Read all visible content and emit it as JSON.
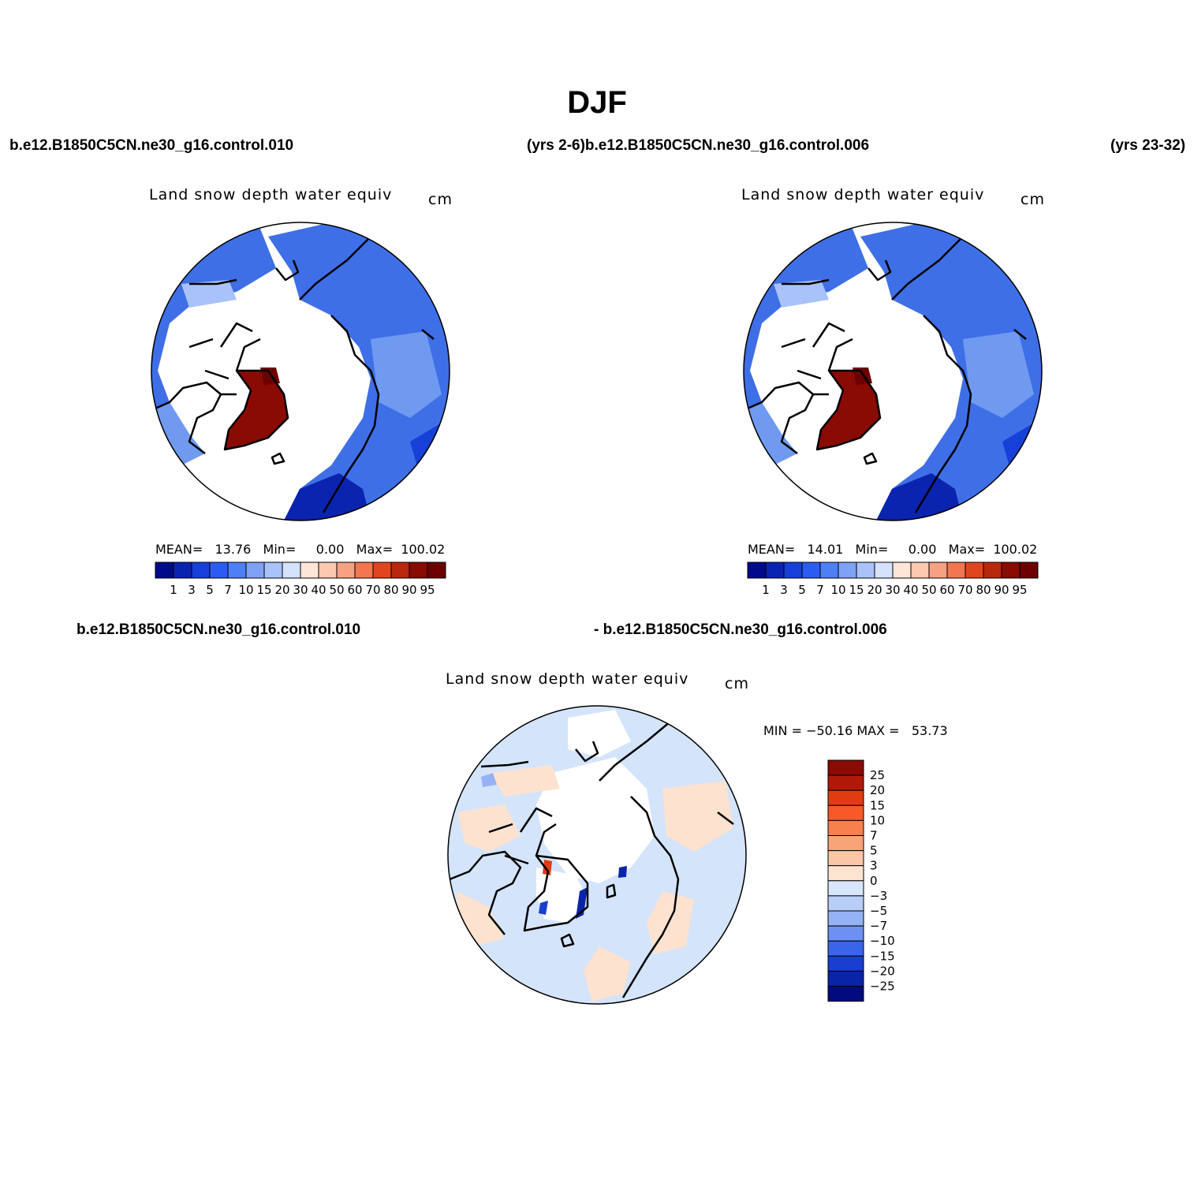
{
  "figure_title": "DJF",
  "header": {
    "case1": "b.e12.B1850C5CN.ne30_g16.control.010",
    "years1_case2": "(yrs 2-6)b.e12.B1850C5CN.ne30_g16.control.006",
    "years2": "(yrs 23-32)",
    "diff_left": "b.e12.B1850C5CN.ne30_g16.control.010",
    "diff_right": "- b.e12.B1850C5CN.ne30_g16.control.006"
  },
  "panels": [
    {
      "id": "case1",
      "title": "Land snow depth water equiv",
      "units": "cm",
      "stats": "MEAN=   13.76   Min=     0.00   Max=  100.02"
    },
    {
      "id": "case2",
      "title": "Land snow depth water equiv",
      "units": "cm",
      "stats": "MEAN=   14.01   Min=     0.00   Max=  100.02"
    },
    {
      "id": "difference",
      "title": "Land snow depth water equiv",
      "units": "cm",
      "stats": "MIN = −50.16 MAX =   53.73"
    }
  ],
  "colorbar_abs": {
    "labels": [
      "1",
      "3",
      "5",
      "7",
      "10",
      "15",
      "20",
      "30",
      "40",
      "50",
      "60",
      "70",
      "80",
      "90",
      "95"
    ],
    "colors": [
      "#000a8a",
      "#0a24b0",
      "#1640d8",
      "#2b5cf0",
      "#4f7ff5",
      "#7fa2f7",
      "#a9c2f9",
      "#d4e2fb",
      "#fde6d8",
      "#fbc8b0",
      "#f7a082",
      "#f27650",
      "#e0461e",
      "#b8280c",
      "#8a0a04",
      "#6c0000"
    ]
  },
  "colorbar_diff": {
    "labels": [
      "25",
      "20",
      "15",
      "10",
      "7",
      "5",
      "3",
      "0",
      "−3",
      "−5",
      "−7",
      "−10",
      "−15",
      "−20",
      "−25"
    ],
    "colors": [
      "#8a0a04",
      "#b01a08",
      "#e03c10",
      "#f55a28",
      "#f7804c",
      "#f8a478",
      "#fbc6a8",
      "#fde4d2",
      "#d8e6fb",
      "#b8cef8",
      "#95b2f5",
      "#6d90f2",
      "#3a64ea",
      "#1a3fd0",
      "#0a24a8",
      "#020a80"
    ]
  },
  "map_fill": {
    "land_blue": "#3f6fe6",
    "land_lightblue": "#6f9af0",
    "greenland_red": "#8a0a04",
    "diff_light_blue": "#d4e4fb",
    "diff_light_orange": "#fde2cf",
    "diff_dark_blue": "#0a24a8"
  }
}
